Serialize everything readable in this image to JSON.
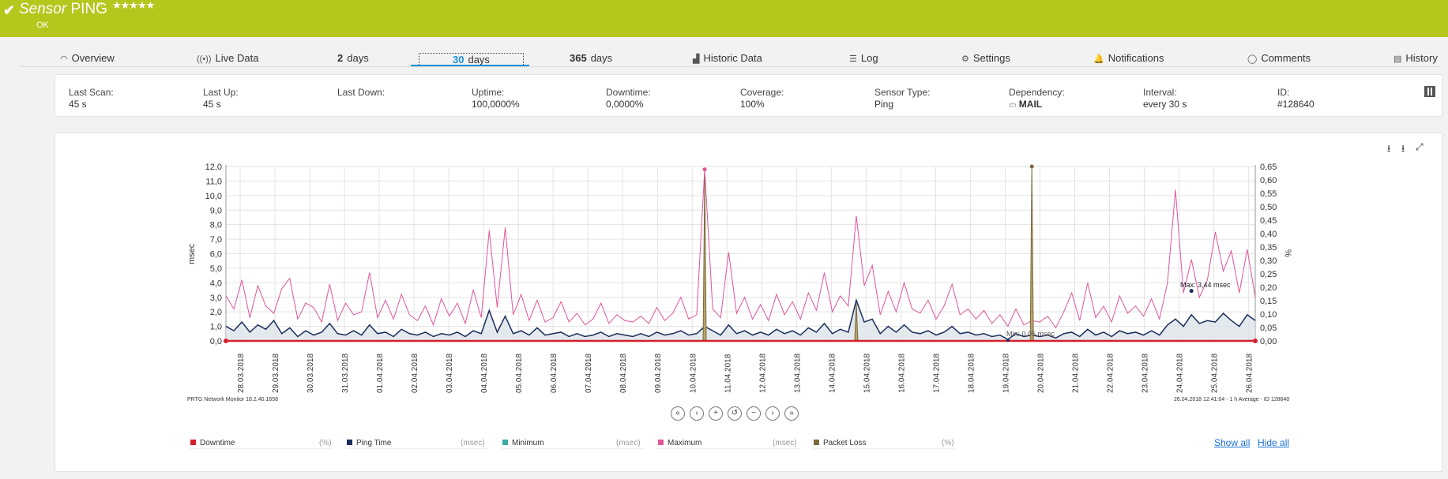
{
  "header": {
    "title_prefix": "Sensor",
    "title": "PING",
    "status": "OK",
    "stars": "★★★★★"
  },
  "tabs": [
    {
      "label": "Overview",
      "icon": "gauge-icon"
    },
    {
      "label": "Live Data",
      "icon": "broadcast-icon"
    },
    {
      "num": "2",
      "label": "days"
    },
    {
      "num": "30",
      "label": "days"
    },
    {
      "num": "365",
      "label": "days"
    },
    {
      "label": "Historic Data",
      "icon": "area-chart-icon"
    },
    {
      "label": "Log",
      "icon": "list-icon"
    },
    {
      "label": "Settings",
      "icon": "gear-icon"
    },
    {
      "label": "Notifications",
      "icon": "bell-icon"
    },
    {
      "label": "Comments",
      "icon": "comment-icon"
    },
    {
      "label": "History",
      "icon": "document-icon"
    }
  ],
  "info": [
    {
      "label": "Last Scan:",
      "value": "45 s"
    },
    {
      "label": "Last Up:",
      "value": "45 s"
    },
    {
      "label": "Last Down:",
      "value": ""
    },
    {
      "label": "Uptime:",
      "value": "100,0000%"
    },
    {
      "label": "Downtime:",
      "value": "0,0000%"
    },
    {
      "label": "Coverage:",
      "value": "100%"
    },
    {
      "label": "Sensor Type:",
      "value": "Ping"
    },
    {
      "label": "Dependency:",
      "value": "MAIL"
    },
    {
      "label": "Interval:",
      "value": "every 30 s"
    },
    {
      "label": "ID:",
      "value": "#128640"
    }
  ],
  "footer_left": "PRTG Network Monitor 18.2.40.1658",
  "footer_right": "26.04.2018 12:41:04 - 1 h Average - ID 128640",
  "annotations": {
    "max": "Max: 3,44 msec",
    "min": "Min: 0,05 msec"
  },
  "legend": [
    {
      "name": "Downtime",
      "unit": "(%)",
      "color": "#d4202c"
    },
    {
      "name": "Ping Time",
      "unit": "(msec)",
      "color": "#1a2d5a"
    },
    {
      "name": "Minimum",
      "unit": "(msec)",
      "color": "#3aaba5"
    },
    {
      "name": "Maximum",
      "unit": "(msec)",
      "color": "#e0559a"
    },
    {
      "name": "Packet Loss",
      "unit": "(%)",
      "color": "#7a6a3a"
    }
  ],
  "links": {
    "show_all": "Show all",
    "hide_all": "Hide all"
  },
  "chart_data": {
    "type": "line",
    "ylabel_left": "msec",
    "ylabel_right": "%",
    "yticks_left": [
      "12,0",
      "11,0",
      "10,0",
      "9,0",
      "8,0",
      "7,0",
      "6,0",
      "5,0",
      "4,0",
      "3,0",
      "2,0",
      "1,0",
      "0,0"
    ],
    "yticks_right": [
      "0,65",
      "0,60",
      "0,55",
      "0,50",
      "0,45",
      "0,40",
      "0,35",
      "0,30",
      "0,25",
      "0,20",
      "0,15",
      "0,10",
      "0,05",
      "0,00"
    ],
    "ylim_left": [
      0,
      12
    ],
    "ylim_right": [
      0,
      0.65
    ],
    "x_labels": [
      "28.03.2018",
      "29.03.2018",
      "30.03.2018",
      "31.03.2018",
      "01.04.2018",
      "02.04.2018",
      "03.04.2018",
      "04.04.2018",
      "05.04.2018",
      "06.04.2018",
      "07.04.2018",
      "08.04.2018",
      "09.04.2018",
      "10.04.2018",
      "11.04.2018",
      "12.04.2018",
      "13.04.2018",
      "14.04.2018",
      "15.04.2018",
      "16.04.2018",
      "17.04.2018",
      "18.04.2018",
      "19.04.2018",
      "20.04.2018",
      "21.04.2018",
      "22.04.2018",
      "23.04.2018",
      "24.04.2018",
      "25.04.2018",
      "26.04.2018"
    ],
    "grid": true,
    "series": [
      {
        "name": "Maximum",
        "color": "#e0559a",
        "values": [
          3.1,
          2.2,
          4.2,
          1.6,
          3.8,
          2.4,
          1.9,
          3.6,
          4.3,
          1.5,
          2.6,
          2.3,
          1.3,
          3.9,
          1.4,
          2.6,
          1.8,
          2.0,
          4.7,
          1.6,
          2.8,
          1.5,
          3.2,
          1.8,
          1.4,
          2.4,
          1.1,
          2.9,
          1.7,
          2.6,
          1.2,
          3.5,
          1.6,
          7.6,
          2.3,
          7.8,
          1.8,
          3.2,
          1.4,
          2.8,
          1.3,
          1.6,
          2.7,
          1.3,
          1.9,
          1.1,
          1.5,
          2.6,
          1.2,
          1.8,
          1.4,
          1.3,
          1.7,
          1.2,
          2.3,
          1.4,
          1.9,
          3.0,
          1.5,
          1.8,
          11.8,
          2.2,
          1.6,
          6.1,
          1.9,
          3.0,
          1.5,
          2.5,
          1.4,
          3.2,
          1.8,
          2.7,
          1.5,
          3.3,
          2.1,
          4.7,
          2.0,
          3.1,
          2.4,
          8.6,
          3.8,
          5.2,
          1.8,
          3.4,
          2.0,
          4.0,
          2.2,
          1.9,
          2.8,
          1.5,
          2.4,
          3.9,
          1.8,
          2.2,
          1.5,
          2.1,
          1.2,
          1.8,
          1.0,
          2.2,
          1.1,
          1.4,
          1.3,
          1.7,
          0.9,
          2.0,
          3.3,
          1.4,
          4.0,
          1.6,
          2.4,
          1.3,
          3.1,
          1.9,
          2.4,
          1.7,
          2.9,
          1.5,
          4.0,
          10.4,
          3.3,
          5.6,
          3.0,
          4.2,
          7.5,
          4.8,
          6.2,
          3.3,
          6.3,
          3.0
        ]
      },
      {
        "name": "Ping Time",
        "color": "#1a2d5a",
        "values": [
          1.0,
          0.7,
          1.3,
          0.6,
          1.1,
          0.8,
          1.4,
          0.5,
          0.9,
          0.3,
          0.7,
          0.4,
          0.6,
          1.2,
          0.5,
          0.4,
          0.7,
          0.4,
          1.1,
          0.5,
          0.6,
          0.3,
          0.8,
          0.5,
          0.4,
          0.6,
          0.3,
          0.5,
          0.4,
          0.6,
          0.3,
          0.7,
          0.5,
          2.1,
          0.6,
          1.7,
          0.5,
          0.7,
          0.4,
          0.9,
          0.4,
          0.5,
          0.6,
          0.3,
          0.5,
          0.3,
          0.4,
          0.6,
          0.3,
          0.5,
          0.4,
          0.3,
          0.5,
          0.3,
          0.6,
          0.4,
          0.5,
          0.7,
          0.4,
          0.5,
          1.0,
          0.7,
          0.4,
          1.1,
          0.5,
          0.7,
          0.4,
          0.6,
          0.4,
          0.8,
          0.5,
          0.7,
          0.4,
          0.9,
          0.6,
          1.2,
          0.5,
          0.8,
          0.6,
          2.8,
          1.3,
          1.5,
          0.5,
          1.0,
          0.6,
          1.1,
          0.6,
          0.5,
          0.7,
          0.4,
          0.6,
          1.0,
          0.5,
          0.6,
          0.4,
          0.5,
          0.3,
          0.4,
          0.1,
          0.5,
          0.3,
          0.4,
          0.3,
          0.4,
          0.2,
          0.5,
          0.6,
          0.3,
          0.8,
          0.4,
          0.6,
          0.3,
          0.7,
          0.5,
          0.6,
          0.4,
          0.7,
          0.4,
          1.1,
          1.5,
          1.0,
          1.8,
          1.2,
          1.4,
          1.3,
          1.9,
          1.4,
          1.0,
          1.8,
          1.4
        ]
      },
      {
        "name": "Packet Loss",
        "color": "#7a6a3a",
        "spikes": [
          {
            "x": 60,
            "value": 0.61
          },
          {
            "x": 79,
            "value": 0.14
          },
          {
            "x": 101,
            "value": 0.65
          }
        ]
      },
      {
        "name": "Downtime",
        "color": "#d4202c",
        "values_const": 0
      }
    ]
  }
}
